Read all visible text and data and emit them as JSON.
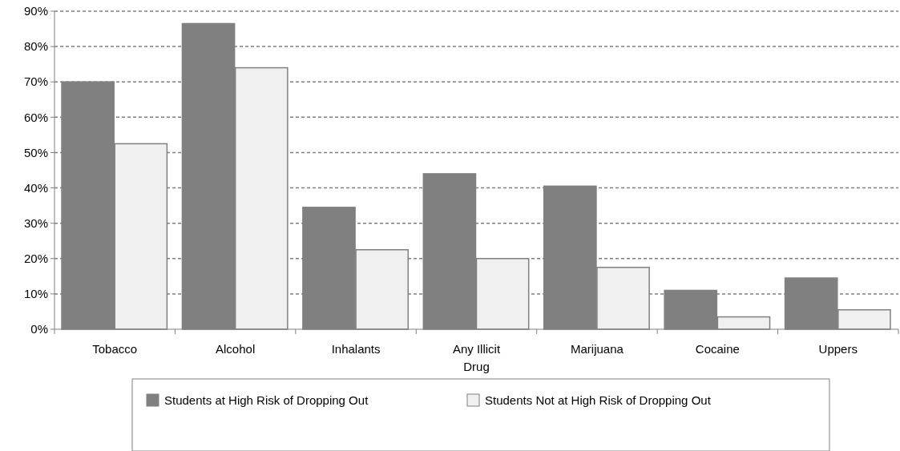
{
  "chart_data": {
    "type": "bar",
    "categories": [
      "Tobacco",
      "Alcohol",
      "Inhalants",
      "Any Illicit Drug",
      "Marijuana",
      "Cocaine",
      "Uppers"
    ],
    "series": [
      {
        "name": "Students at High Risk of Dropping Out",
        "color": "#808080",
        "values": [
          70,
          86.5,
          34.5,
          44,
          40.5,
          11,
          14.5
        ]
      },
      {
        "name": "Students Not at High Risk of Dropping Out",
        "color": "#f0f0f0",
        "values": [
          52.5,
          74,
          22.5,
          20,
          17.5,
          3.5,
          5.5
        ]
      }
    ],
    "ylim": [
      0,
      90
    ],
    "yticks": [
      {
        "value": 0,
        "label": "0%"
      },
      {
        "value": 10,
        "label": "10%"
      },
      {
        "value": 20,
        "label": "20%"
      },
      {
        "value": 30,
        "label": "30%"
      },
      {
        "value": 40,
        "label": "40%"
      },
      {
        "value": 50,
        "label": "50%"
      },
      {
        "value": 60,
        "label": "60%"
      },
      {
        "value": 70,
        "label": "70%"
      },
      {
        "value": 80,
        "label": "80%"
      },
      {
        "value": 90,
        "label": "90%"
      }
    ],
    "grid": "y",
    "legend": "bottom",
    "line_style": "dashed"
  }
}
